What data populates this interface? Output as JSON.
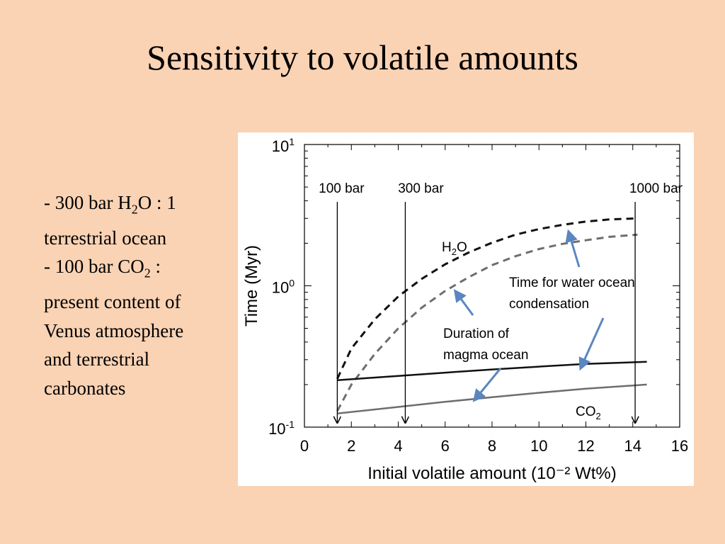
{
  "slide": {
    "title": "Sensitivity to volatile amounts",
    "bullets": [
      {
        "prefix": "- 300 bar H",
        "sub": "2",
        "suffix": "O :",
        "rest": "1 terrestrial ocean"
      },
      {
        "prefix": "- 100 bar CO",
        "sub": "2",
        "suffix": " :",
        "rest": "present content of Venus atmosphere and terrestrial carbonates"
      }
    ]
  },
  "chart_data": {
    "type": "line",
    "xlabel": "Initial volatile amount (10⁻² Wt%)",
    "ylabel": "Time (Myr)",
    "xlim": [
      0,
      16
    ],
    "ylim": [
      0.1,
      10
    ],
    "y_scale": "log",
    "x_ticks": [
      "0",
      "2",
      "4",
      "6",
      "8",
      "10",
      "12",
      "14",
      "16"
    ],
    "y_ticks": [
      {
        "base": "10",
        "exp": "1",
        "value": 10
      },
      {
        "base": "10",
        "exp": "0",
        "value": 1
      },
      {
        "base": "10",
        "exp": "-1",
        "value": 0.1
      }
    ],
    "grid": false,
    "series": [
      {
        "style": "dashed-black",
        "x": [
          1.4,
          2,
          3,
          4,
          5,
          6,
          7,
          8,
          9,
          10,
          11,
          12,
          13,
          14.2
        ],
        "y": [
          0.22,
          0.36,
          0.58,
          0.84,
          1.12,
          1.42,
          1.72,
          2.02,
          2.3,
          2.52,
          2.7,
          2.85,
          2.95,
          3.0
        ]
      },
      {
        "style": "dashed-gray",
        "x": [
          1.4,
          2,
          3,
          4,
          5,
          6,
          7,
          8,
          9,
          10,
          11,
          12,
          13,
          14.2
        ],
        "y": [
          0.13,
          0.2,
          0.33,
          0.5,
          0.7,
          0.92,
          1.15,
          1.4,
          1.62,
          1.82,
          1.98,
          2.1,
          2.22,
          2.3
        ]
      },
      {
        "style": "solid-black",
        "x": [
          1.4,
          4,
          6,
          8,
          10,
          12,
          14.6
        ],
        "y": [
          0.215,
          0.23,
          0.243,
          0.256,
          0.268,
          0.28,
          0.29
        ]
      },
      {
        "style": "solid-gray",
        "x": [
          1.4,
          4,
          6,
          8,
          10,
          12,
          14.6
        ],
        "y": [
          0.125,
          0.139,
          0.151,
          0.163,
          0.175,
          0.187,
          0.2
        ]
      }
    ],
    "markers": [
      {
        "label": "100 bar",
        "x": 1.4
      },
      {
        "label": "300 bar",
        "x": 4.3
      },
      {
        "label": "1000 bar",
        "x": 14.1
      }
    ],
    "labels": {
      "h2o": {
        "base": "H",
        "sub": "2",
        "tail": "O"
      },
      "co2": {
        "base": "CO",
        "sub": "2"
      },
      "water_line1": "Time for water ocean",
      "water_line2": "condensation",
      "magma_line1": "Duration of",
      "magma_line2": "magma ocean"
    },
    "colors": {
      "arrow": "#5b86c0",
      "dark": "#111111",
      "gray": "#6e6e6e"
    }
  }
}
